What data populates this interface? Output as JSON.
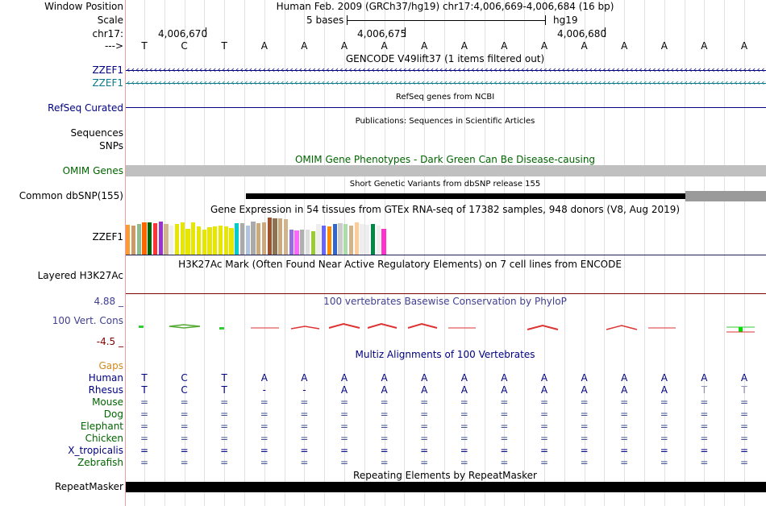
{
  "labels": {
    "window_position": "Window Position",
    "scale": "Scale",
    "chrom": "chr17:",
    "strand": "--->",
    "zzef1_a": "ZZEF1",
    "zzef1_b": "ZZEF1",
    "refseq": "RefSeq Curated",
    "sequences": "Sequences",
    "snps": "SNPs",
    "omim": "OMIM Genes",
    "common_snp": "Common dbSNP(155)",
    "gtex_gene": "ZZEF1",
    "h3k27ac": "Layered H3K27Ac",
    "cons_max": "4.88 _",
    "cons_name": "100 Vert. Cons",
    "cons_min": "-4.5 _",
    "gaps": "Gaps",
    "repeatmasker": "RepeatMasker"
  },
  "species": [
    "Human",
    "Rhesus",
    "Mouse",
    "Dog",
    "Elephant",
    "Chicken",
    "X_tropicalis",
    "Zebrafish"
  ],
  "header": {
    "assembly": "Human Feb. 2009 (GRCh37/hg19)   chr17:4,006,669-4,006,684 (16 bp)",
    "scale_text": "5 bases",
    "scale_db": "hg19",
    "ticks": [
      "4,006,670",
      "4,006,675",
      "4,006,680"
    ]
  },
  "sequence": [
    "T",
    "C",
    "T",
    "A",
    "A",
    "A",
    "A",
    "A",
    "A",
    "A",
    "A",
    "A",
    "A",
    "A",
    "A",
    "A"
  ],
  "tracks": {
    "gencode": "GENCODE V49lift37 (1 items filtered out)",
    "refseq": "RefSeq genes from NCBI",
    "publications": "Publications: Sequences in Scientific Articles",
    "omim": "OMIM Gene Phenotypes - Dark Green Can Be Disease-causing",
    "snp": "Short Genetic Variants from dbSNP release 155",
    "gtex": "Gene Expression in 54 tissues from GTEx RNA-seq of 17382 samples, 948 donors (V8, Aug 2019)",
    "h3k27ac": "H3K27Ac Mark (Often Found Near Active Regulatory Elements) on 7 cell lines from ENCODE",
    "phylop": "100 vertebrates Basewise Conservation by PhyloP",
    "multiz": "Multiz Alignments of 100 Vertebrates",
    "repeat": "Repeating Elements by RepeatMasker"
  },
  "alignment": {
    "human": [
      "T",
      "C",
      "T",
      "A",
      "A",
      "A",
      "A",
      "A",
      "A",
      "A",
      "A",
      "A",
      "A",
      "A",
      "A",
      "A"
    ],
    "rhesus": [
      "T",
      "C",
      "T",
      "-",
      "-",
      "A",
      "A",
      "A",
      "A",
      "A",
      "A",
      "A",
      "A",
      "A",
      "T",
      "T"
    ],
    "other_symbol": "="
  },
  "colors": {
    "label_blue": "#000080",
    "label_green": "#006400",
    "gaps_orange": "#d2881a",
    "cons_blue": "#404090",
    "omim_gray": "#c0c0c0",
    "gencode_teal": "#0a7a8a"
  },
  "gtex_bars": [
    {
      "color": "#ff9933",
      "value": 0.77
    },
    {
      "color": "#cc9966",
      "value": 0.76
    },
    {
      "color": "#8fbc8f",
      "value": 0.8
    },
    {
      "color": "#ff6600",
      "value": 0.83
    },
    {
      "color": "#006400",
      "value": 0.83
    },
    {
      "color": "#ff3333",
      "value": 0.82
    },
    {
      "color": "#9933cc",
      "value": 0.85
    },
    {
      "color": "#d2b48c",
      "value": 0.8
    },
    {
      "color": "#eeeeee",
      "value": 0.76
    },
    {
      "color": "#e6e600",
      "value": 0.79
    },
    {
      "color": "#e6e600",
      "value": 0.84
    },
    {
      "color": "#e6e600",
      "value": 0.66
    },
    {
      "color": "#e6e600",
      "value": 0.83
    },
    {
      "color": "#e6e600",
      "value": 0.73
    },
    {
      "color": "#e6e600",
      "value": 0.64
    },
    {
      "color": "#e6e600",
      "value": 0.7
    },
    {
      "color": "#e6e600",
      "value": 0.73
    },
    {
      "color": "#e6e600",
      "value": 0.74
    },
    {
      "color": "#e6e600",
      "value": 0.72
    },
    {
      "color": "#e6e600",
      "value": 0.68
    },
    {
      "color": "#00cccc",
      "value": 0.81
    },
    {
      "color": "#aaaaaa",
      "value": 0.81
    },
    {
      "color": "#b0c4de",
      "value": 0.76
    },
    {
      "color": "#aaaaaa",
      "value": 0.85
    },
    {
      "color": "#cdaa7d",
      "value": 0.81
    },
    {
      "color": "#cdaa7d",
      "value": 0.83
    },
    {
      "color": "#a0522d",
      "value": 0.96
    },
    {
      "color": "#8b7355",
      "value": 0.93
    },
    {
      "color": "#cdaa7d",
      "value": 0.93
    },
    {
      "color": "#d2b48c",
      "value": 0.91
    },
    {
      "color": "#9370db",
      "value": 0.65
    },
    {
      "color": "#ff66ff",
      "value": 0.62
    },
    {
      "color": "#b0b0b0",
      "value": 0.64
    },
    {
      "color": "#dddddd",
      "value": 0.64
    },
    {
      "color": "#9acd32",
      "value": 0.6
    },
    {
      "color": "#eeeeee",
      "value": 0.79
    },
    {
      "color": "#6666ff",
      "value": 0.76
    },
    {
      "color": "#ff8c00",
      "value": 0.73
    },
    {
      "color": "#3366cc",
      "value": 0.8
    },
    {
      "color": "#cccccc",
      "value": 0.81
    },
    {
      "color": "#aaddaa",
      "value": 0.8
    },
    {
      "color": "#d2b48c",
      "value": 0.76
    },
    {
      "color": "#ffcc99",
      "value": 0.83
    },
    {
      "color": "#eeeeee",
      "value": 0.8
    },
    {
      "color": "#eeeeee",
      "value": 0.77
    },
    {
      "color": "#008844",
      "value": 0.79
    },
    {
      "color": "#eeeeee",
      "value": 0.74
    },
    {
      "color": "#ff33cc",
      "value": 0.66
    }
  ]
}
